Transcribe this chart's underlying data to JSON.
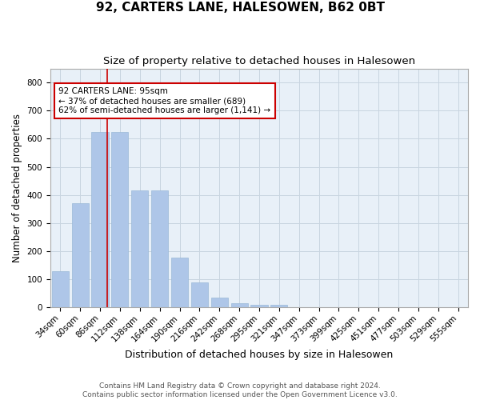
{
  "title": "92, CARTERS LANE, HALESOWEN, B62 0BT",
  "subtitle": "Size of property relative to detached houses in Halesowen",
  "xlabel": "Distribution of detached houses by size in Halesowen",
  "ylabel": "Number of detached properties",
  "categories": [
    "34sqm",
    "60sqm",
    "86sqm",
    "112sqm",
    "138sqm",
    "164sqm",
    "190sqm",
    "216sqm",
    "242sqm",
    "268sqm",
    "295sqm",
    "321sqm",
    "347sqm",
    "373sqm",
    "399sqm",
    "425sqm",
    "451sqm",
    "477sqm",
    "503sqm",
    "529sqm",
    "555sqm"
  ],
  "values": [
    128,
    370,
    623,
    623,
    415,
    415,
    178,
    88,
    35,
    15,
    10,
    10,
    0,
    0,
    0,
    0,
    0,
    0,
    0,
    0,
    0
  ],
  "bar_color": "#aec6e8",
  "bar_edge_color": "#9ab8d8",
  "vline_x": 2.35,
  "vline_color": "#cc0000",
  "annotation_text": "92 CARTERS LANE: 95sqm\n← 37% of detached houses are smaller (689)\n62% of semi-detached houses are larger (1,141) →",
  "annotation_box_color": "#ffffff",
  "annotation_box_edge": "#cc0000",
  "ylim": [
    0,
    850
  ],
  "yticks": [
    0,
    100,
    200,
    300,
    400,
    500,
    600,
    700,
    800
  ],
  "grid_color": "#c8d4e0",
  "bg_color": "#e8f0f8",
  "footer": "Contains HM Land Registry data © Crown copyright and database right 2024.\nContains public sector information licensed under the Open Government Licence v3.0.",
  "title_fontsize": 11,
  "subtitle_fontsize": 9.5,
  "xlabel_fontsize": 9,
  "ylabel_fontsize": 8.5,
  "tick_fontsize": 7.5,
  "footer_fontsize": 6.5,
  "annot_fontsize": 7.5
}
